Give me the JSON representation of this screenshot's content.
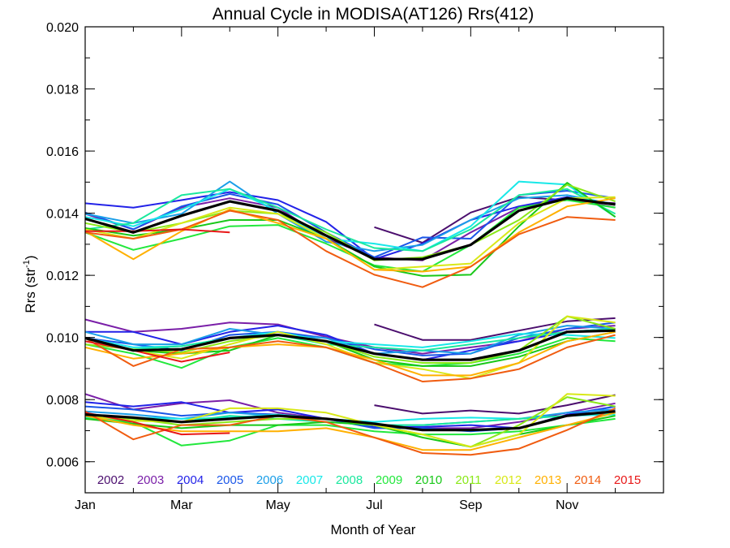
{
  "chart_data": {
    "type": "line",
    "title": "Annual Cycle in MODISA(AT126) Rrs(412)",
    "xlabel": "Month of Year",
    "ylabel_main": "Rrs (str",
    "ylabel_sup": "-1",
    "ylabel_close": ")",
    "xlim": [
      0,
      12
    ],
    "ylim": [
      0.005,
      0.02
    ],
    "xticks": [
      {
        "x": 0,
        "label": "Jan"
      },
      {
        "x": 2,
        "label": "Mar"
      },
      {
        "x": 4,
        "label": "May"
      },
      {
        "x": 6,
        "label": "Jul"
      },
      {
        "x": 8,
        "label": "Sep"
      },
      {
        "x": 10,
        "label": "Nov"
      }
    ],
    "yticks": [
      {
        "y": 0.006,
        "label": "0.006"
      },
      {
        "y": 0.008,
        "label": "0.008"
      },
      {
        "y": 0.01,
        "label": "0.010"
      },
      {
        "y": 0.012,
        "label": "0.012"
      },
      {
        "y": 0.014,
        "label": "0.014"
      },
      {
        "y": 0.016,
        "label": "0.016"
      },
      {
        "y": 0.018,
        "label": "0.018"
      },
      {
        "y": 0.02,
        "label": "0.020"
      }
    ],
    "grid": false,
    "legend_placement": "bottom inside plot",
    "x": [
      0,
      1,
      2,
      3,
      4,
      5,
      6,
      7,
      8,
      9,
      10,
      11
    ],
    "series": [
      {
        "name": "2002",
        "color": "#4b0e6e",
        "groups": {
          "top": [
            null,
            null,
            null,
            null,
            null,
            null,
            0.01355,
            0.01305,
            0.01402,
            0.01452,
            0.01442,
            0.01432
          ],
          "mid": [
            null,
            null,
            null,
            null,
            null,
            null,
            0.01042,
            0.00992,
            0.00992,
            0.01022,
            0.01052,
            0.01062
          ],
          "low": [
            null,
            null,
            null,
            null,
            null,
            null,
            0.00782,
            0.00755,
            0.00765,
            0.00755,
            0.00782,
            0.00815
          ]
        }
      },
      {
        "name": "2003",
        "color": "#7a1fa8",
        "groups": {
          "top": [
            0.01398,
            0.01348,
            0.01418,
            0.01448,
            0.01418,
            0.01318,
            0.01258,
            0.01248,
            0.01338,
            0.01418,
            0.01448,
            0.01418
          ],
          "mid": [
            0.01058,
            0.01018,
            0.01028,
            0.01048,
            0.01042,
            0.01002,
            0.00968,
            0.00948,
            0.00968,
            0.00988,
            0.01028,
            0.01038
          ],
          "low": [
            0.00818,
            0.00768,
            0.00788,
            0.00798,
            0.00758,
            0.00738,
            0.00718,
            0.00708,
            0.00708,
            0.00728,
            0.00758,
            0.00788
          ]
        }
      },
      {
        "name": "2004",
        "color": "#2222e8",
        "groups": {
          "top": [
            0.01432,
            0.01418,
            0.01442,
            0.01468,
            0.01442,
            0.01372,
            0.01252,
            0.01302,
            0.01378,
            0.01422,
            0.01452,
            0.01428
          ],
          "mid": [
            0.01018,
            0.01018,
            0.00978,
            0.01018,
            0.01038,
            0.01008,
            0.00948,
            0.00928,
            0.00958,
            0.00988,
            0.01018,
            0.01028
          ],
          "low": [
            0.00792,
            0.00778,
            0.00792,
            0.00758,
            0.00768,
            0.00738,
            0.00712,
            0.00712,
            0.00718,
            0.00708,
            0.00752,
            0.00778
          ]
        }
      },
      {
        "name": "2005",
        "color": "#1a56e8",
        "groups": {
          "top": [
            0.01402,
            0.01348,
            0.01422,
            0.01462,
            0.01428,
            0.01338,
            0.01258,
            0.01322,
            0.01318,
            0.01458,
            0.01472,
            0.01448
          ],
          "mid": [
            0.00998,
            0.00978,
            0.00958,
            0.01008,
            0.01018,
            0.00998,
            0.00962,
            0.00942,
            0.00948,
            0.00998,
            0.01028,
            0.01048
          ],
          "low": [
            0.00778,
            0.00768,
            0.00748,
            0.00758,
            0.00752,
            0.00738,
            0.00708,
            0.00708,
            0.00698,
            0.00708,
            0.00748,
            0.00778
          ]
        }
      },
      {
        "name": "2006",
        "color": "#1a9ee8",
        "groups": {
          "top": [
            0.01398,
            0.01368,
            0.01398,
            0.01502,
            0.01398,
            0.01308,
            0.01278,
            0.01298,
            0.01378,
            0.01448,
            0.01458,
            0.01428
          ],
          "mid": [
            0.01018,
            0.00978,
            0.00978,
            0.01028,
            0.01008,
            0.00998,
            0.00948,
            0.00958,
            0.00948,
            0.01008,
            0.01038,
            0.01028
          ],
          "low": [
            0.00762,
            0.00752,
            0.00738,
            0.00758,
            0.00748,
            0.00738,
            0.00718,
            0.00718,
            0.00728,
            0.00738,
            0.00758,
            0.00768
          ]
        }
      },
      {
        "name": "2007",
        "color": "#18e8e8",
        "groups": {
          "top": [
            0.01388,
            0.01358,
            0.01412,
            0.01478,
            0.01408,
            0.01318,
            0.01302,
            0.01278,
            0.01358,
            0.01502,
            0.01492,
            0.01388
          ],
          "mid": [
            0.00998,
            0.00968,
            0.00972,
            0.00998,
            0.01018,
            0.00988,
            0.00978,
            0.00968,
            0.00988,
            0.01012,
            0.01008,
            0.00998
          ],
          "low": [
            0.00748,
            0.00742,
            0.00738,
            0.00742,
            0.00752,
            0.00738,
            0.00728,
            0.00738,
            0.00742,
            0.00738,
            0.00748,
            0.00752
          ]
        }
      },
      {
        "name": "2008",
        "color": "#1ae89e",
        "groups": {
          "top": [
            0.01348,
            0.01368,
            0.01458,
            0.01478,
            0.01418,
            0.01348,
            0.01288,
            0.01278,
            0.01348,
            0.01458,
            0.01478,
            0.01398
          ],
          "mid": [
            0.00988,
            0.00962,
            0.00972,
            0.00998,
            0.01008,
            0.00978,
            0.00968,
            0.00958,
            0.00978,
            0.00998,
            0.01018,
            0.01028
          ],
          "low": [
            0.00742,
            0.00732,
            0.00728,
            0.00748,
            0.00738,
            0.00728,
            0.00718,
            0.00718,
            0.00728,
            0.00738,
            0.00748,
            0.00758
          ]
        }
      },
      {
        "name": "2009",
        "color": "#22e83c",
        "groups": {
          "top": [
            0.01338,
            0.01282,
            0.01318,
            0.01358,
            0.01362,
            0.01302,
            0.01232,
            0.01212,
            0.01298,
            0.01418,
            0.01442,
            0.01418
          ],
          "mid": [
            0.00978,
            0.00948,
            0.00902,
            0.00968,
            0.00998,
            0.00968,
            0.00918,
            0.00908,
            0.00918,
            0.00948,
            0.00998,
            0.00988
          ],
          "low": [
            0.00738,
            0.00728,
            0.00652,
            0.00668,
            0.00718,
            0.00718,
            0.00698,
            0.00688,
            0.00688,
            0.00698,
            0.00718,
            0.00738
          ]
        }
      },
      {
        "name": "2010",
        "color": "#18c818",
        "groups": {
          "top": [
            0.01352,
            0.01328,
            0.01348,
            0.01378,
            0.01378,
            0.01318,
            0.01228,
            0.01198,
            0.01202,
            0.01358,
            0.01498,
            0.01388
          ],
          "mid": [
            0.00998,
            0.00958,
            0.00948,
            0.00958,
            0.01008,
            0.00988,
            0.00928,
            0.00908,
            0.00908,
            0.00938,
            0.00988,
            0.01018
          ],
          "low": [
            0.00738,
            0.00722,
            0.00708,
            0.00718,
            0.00718,
            0.00728,
            0.00718,
            0.00678,
            0.00648,
            0.00688,
            0.00718,
            0.00748
          ]
        }
      },
      {
        "name": "2011",
        "color": "#8ae818",
        "groups": {
          "top": [
            0.01368,
            0.01338,
            0.01368,
            0.01408,
            0.01398,
            0.01338,
            0.01248,
            0.01258,
            0.01298,
            0.01378,
            0.01492,
            0.01438
          ],
          "mid": [
            0.00978,
            0.00962,
            0.00952,
            0.00988,
            0.01008,
            0.00988,
            0.00938,
            0.00918,
            0.00918,
            0.00958,
            0.01068,
            0.01028
          ],
          "low": [
            0.00748,
            0.00738,
            0.00718,
            0.00728,
            0.00738,
            0.00738,
            0.00718,
            0.00688,
            0.00648,
            0.00718,
            0.00808,
            0.00778
          ]
        }
      },
      {
        "name": "2012",
        "color": "#d8e818",
        "groups": {
          "top": [
            0.01348,
            0.01318,
            0.01368,
            0.01418,
            0.01398,
            0.01318,
            0.01218,
            0.01228,
            0.01238,
            0.01368,
            0.01448,
            0.01452
          ],
          "mid": [
            0.00998,
            0.00958,
            0.00932,
            0.00978,
            0.01018,
            0.00978,
            0.00918,
            0.00898,
            0.00868,
            0.00918,
            0.01068,
            0.01048
          ],
          "low": [
            0.00748,
            0.00732,
            0.00728,
            0.00772,
            0.00772,
            0.00758,
            0.00718,
            0.00688,
            0.00648,
            0.00688,
            0.00818,
            0.00812
          ]
        }
      },
      {
        "name": "2013",
        "color": "#ffb000",
        "groups": {
          "top": [
            0.01342,
            0.01252,
            0.01342,
            0.01412,
            0.01368,
            0.01318,
            0.01218,
            0.01212,
            0.01228,
            0.01338,
            0.01422,
            0.01448
          ],
          "mid": [
            0.00968,
            0.00932,
            0.00948,
            0.00968,
            0.00978,
            0.00968,
            0.00928,
            0.00878,
            0.00878,
            0.00918,
            0.00988,
            0.01018
          ],
          "low": [
            0.00748,
            0.00718,
            0.00698,
            0.00698,
            0.00698,
            0.00708,
            0.00678,
            0.00638,
            0.00638,
            0.00678,
            0.00718,
            0.00758
          ]
        }
      },
      {
        "name": "2014",
        "color": "#f05c10",
        "groups": {
          "top": [
            0.01338,
            0.01318,
            0.01348,
            0.01408,
            0.01378,
            0.01278,
            0.01202,
            0.01162,
            0.01228,
            0.01332,
            0.01388,
            0.01378
          ],
          "mid": [
            0.00998,
            0.00908,
            0.00962,
            0.00968,
            0.00988,
            0.00968,
            0.00918,
            0.00858,
            0.00868,
            0.00898,
            0.00968,
            0.01008
          ],
          "low": [
            0.00762,
            0.00672,
            0.00718,
            0.00718,
            0.00748,
            0.00728,
            0.00678,
            0.00628,
            0.00622,
            0.00642,
            0.00702,
            0.00772
          ]
        }
      },
      {
        "name": "2015",
        "color": "#e81818",
        "groups": {
          "top": [
            0.01342,
            0.01342,
            0.01348,
            0.01338,
            null,
            null,
            null,
            null,
            null,
            null,
            null,
            null
          ],
          "mid": [
            0.00988,
            0.00958,
            0.00922,
            0.00952,
            null,
            null,
            null,
            null,
            null,
            null,
            null,
            null
          ],
          "low": [
            0.00758,
            0.00728,
            0.00688,
            0.00692,
            null,
            null,
            null,
            null,
            null,
            null,
            null,
            null
          ]
        }
      }
    ],
    "mean_series": {
      "color": "#000000",
      "groups": {
        "top": [
          0.01382,
          0.01338,
          0.01392,
          0.01438,
          0.01408,
          0.01328,
          0.01252,
          0.01252,
          0.01298,
          0.01408,
          0.01448,
          0.01428
        ],
        "mid": [
          0.00998,
          0.00958,
          0.00962,
          0.00998,
          0.01008,
          0.00988,
          0.00948,
          0.00928,
          0.00928,
          0.00958,
          0.01018,
          0.01022
        ],
        "low": [
          0.00752,
          0.00742,
          0.00728,
          0.00738,
          0.00748,
          0.00738,
          0.00722,
          0.00702,
          0.00702,
          0.00708,
          0.00748,
          0.00762
        ]
      }
    }
  }
}
